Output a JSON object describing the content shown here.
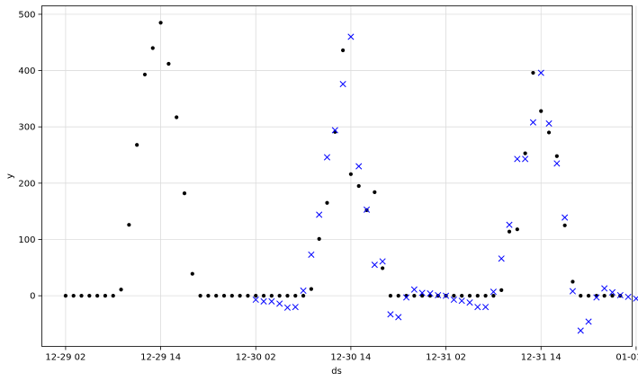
{
  "chart_data": {
    "type": "scatter",
    "title": "",
    "xlabel": "ds",
    "ylabel": "y",
    "grid": true,
    "xlim": [
      -6,
      143
    ],
    "ylim": [
      -90,
      515
    ],
    "x_ticks": [
      {
        "value": 0,
        "label": "12-29 02"
      },
      {
        "value": 24,
        "label": "12-29 14"
      },
      {
        "value": 48,
        "label": "12-30 02"
      },
      {
        "value": 72,
        "label": "12-30 14"
      },
      {
        "value": 96,
        "label": "12-31 02"
      },
      {
        "value": 120,
        "label": "12-31 14"
      },
      {
        "value": 144,
        "label": "01-01 02"
      }
    ],
    "y_ticks": [
      0,
      100,
      200,
      300,
      400,
      500
    ],
    "series": [
      {
        "marker": "dot",
        "color": "#000000",
        "points": [
          [
            0,
            0
          ],
          [
            2,
            0
          ],
          [
            4,
            0
          ],
          [
            6,
            0
          ],
          [
            8,
            0
          ],
          [
            10,
            0
          ],
          [
            12,
            0
          ],
          [
            14,
            11
          ],
          [
            16,
            126
          ],
          [
            18,
            268
          ],
          [
            20,
            393
          ],
          [
            22,
            440
          ],
          [
            24,
            485
          ],
          [
            26,
            412
          ],
          [
            28,
            317
          ],
          [
            30,
            182
          ],
          [
            32,
            39
          ],
          [
            34,
            0
          ],
          [
            36,
            0
          ],
          [
            38,
            0
          ],
          [
            40,
            0
          ],
          [
            42,
            0
          ],
          [
            44,
            0
          ],
          [
            46,
            0
          ],
          [
            48,
            0
          ],
          [
            50,
            0
          ],
          [
            52,
            0
          ],
          [
            54,
            0
          ],
          [
            56,
            0
          ],
          [
            58,
            0
          ],
          [
            60,
            0
          ],
          [
            62,
            12
          ],
          [
            64,
            101
          ],
          [
            66,
            165
          ],
          [
            68,
            291
          ],
          [
            70,
            436
          ],
          [
            72,
            216
          ],
          [
            74,
            195
          ],
          [
            76,
            152
          ],
          [
            78,
            184
          ],
          [
            80,
            49
          ],
          [
            82,
            0
          ],
          [
            84,
            0
          ],
          [
            86,
            0
          ],
          [
            88,
            0
          ],
          [
            90,
            0
          ],
          [
            92,
            0
          ],
          [
            94,
            0
          ],
          [
            96,
            0
          ],
          [
            98,
            0
          ],
          [
            100,
            0
          ],
          [
            102,
            0
          ],
          [
            104,
            0
          ],
          [
            106,
            0
          ],
          [
            108,
            0
          ],
          [
            110,
            10
          ],
          [
            112,
            114
          ],
          [
            114,
            118
          ],
          [
            116,
            253
          ],
          [
            118,
            396
          ],
          [
            120,
            328
          ],
          [
            122,
            290
          ],
          [
            124,
            248
          ],
          [
            126,
            125
          ],
          [
            128,
            25
          ],
          [
            130,
            0
          ],
          [
            132,
            0
          ],
          [
            134,
            0
          ],
          [
            136,
            0
          ],
          [
            138,
            0
          ],
          [
            140,
            0
          ]
        ]
      },
      {
        "marker": "x",
        "color": "#0000ff",
        "points": [
          [
            48,
            -7
          ],
          [
            50,
            -10
          ],
          [
            52,
            -10
          ],
          [
            54,
            -14
          ],
          [
            56,
            -21
          ],
          [
            58,
            -20
          ],
          [
            60,
            9
          ],
          [
            62,
            73
          ],
          [
            64,
            144
          ],
          [
            66,
            246
          ],
          [
            68,
            294
          ],
          [
            70,
            376
          ],
          [
            72,
            460
          ],
          [
            74,
            230
          ],
          [
            76,
            153
          ],
          [
            78,
            55
          ],
          [
            80,
            61
          ],
          [
            82,
            -33
          ],
          [
            84,
            -38
          ],
          [
            86,
            -3
          ],
          [
            88,
            11
          ],
          [
            90,
            5
          ],
          [
            92,
            4
          ],
          [
            94,
            1
          ],
          [
            96,
            0
          ],
          [
            98,
            -7
          ],
          [
            100,
            -9
          ],
          [
            102,
            -12
          ],
          [
            104,
            -20
          ],
          [
            106,
            -20
          ],
          [
            108,
            7
          ],
          [
            110,
            66
          ],
          [
            112,
            126
          ],
          [
            114,
            243
          ],
          [
            116,
            243
          ],
          [
            118,
            308
          ],
          [
            120,
            396
          ],
          [
            122,
            306
          ],
          [
            124,
            235
          ],
          [
            126,
            139
          ],
          [
            128,
            8
          ],
          [
            130,
            -62
          ],
          [
            132,
            -46
          ],
          [
            134,
            -3
          ],
          [
            136,
            13
          ],
          [
            138,
            6
          ],
          [
            140,
            1
          ],
          [
            142,
            -2
          ],
          [
            144,
            -5
          ]
        ]
      }
    ]
  }
}
